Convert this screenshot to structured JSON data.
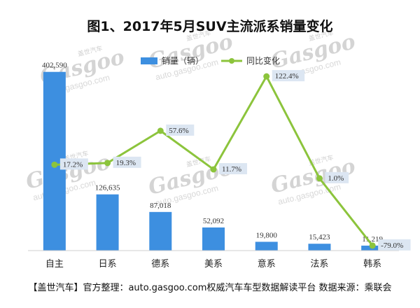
{
  "chart_data": {
    "type": "bar",
    "title": "图1、2017年5月SUV主流派系销量变化",
    "categories": [
      "自主",
      "日系",
      "德系",
      "美系",
      "意系",
      "法系",
      "韩系"
    ],
    "series": [
      {
        "name": "销量（辆）",
        "kind": "bar",
        "color": "#3d8fe0",
        "values": [
          402590,
          126635,
          87018,
          52092,
          19800,
          15423,
          11219
        ],
        "labels": [
          "402,590",
          "126,635",
          "87,018",
          "52,092",
          "19,800",
          "15,423",
          "11,219"
        ]
      },
      {
        "name": "同比变化",
        "kind": "line",
        "color": "#8cc43c",
        "values": [
          17.2,
          19.3,
          57.6,
          11.7,
          122.4,
          1.0,
          -79.0
        ],
        "labels": [
          "17.2%",
          "19.3%",
          "57.6%",
          "11.7%",
          "122.4%",
          "1.0%",
          "-79.0%"
        ],
        "negative_color": "#e04040"
      }
    ],
    "bar_ylim": [
      0,
      410000
    ],
    "line_ylim": [
      -95,
      140
    ],
    "grid": false,
    "legend": "top-center"
  },
  "watermark": {
    "logo": "Gasgoo",
    "url": "auto.gasgoo.com",
    "cn": "盖世汽车"
  },
  "footer": {
    "text": "【盖世汽车】官方整理：auto.gasgoo.com权威汽车车型数据解读平台 数据来源：乘联会"
  }
}
